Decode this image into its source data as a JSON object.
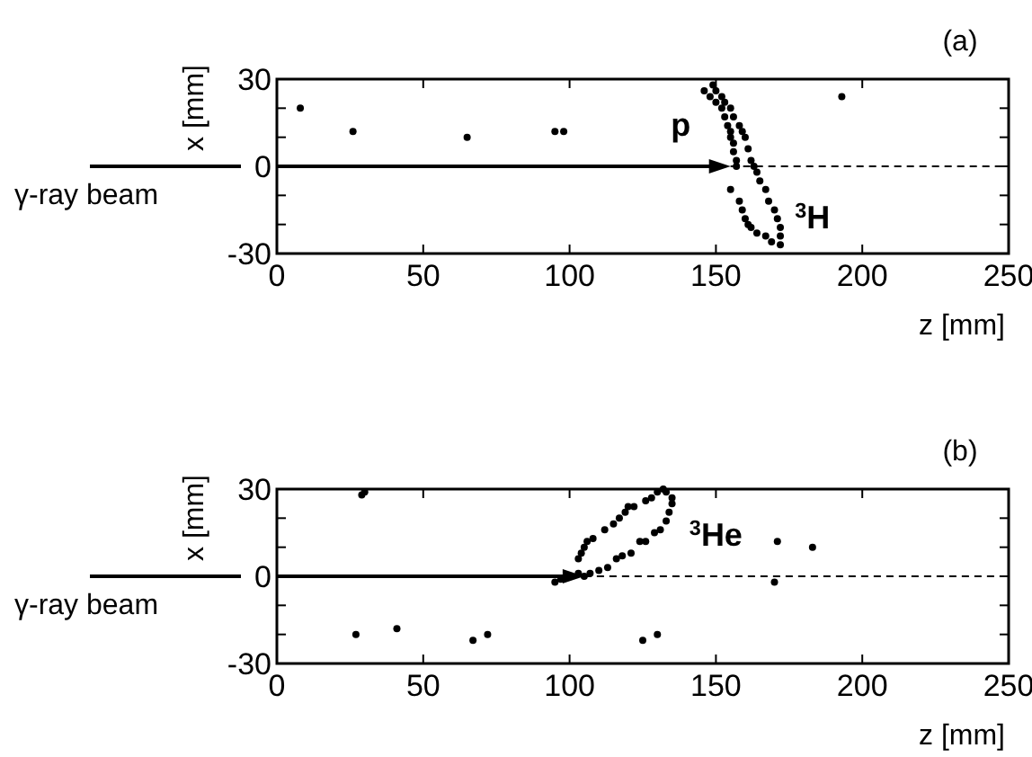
{
  "chart_data": [
    {
      "type": "scatter",
      "title": "(a)",
      "xlabel": "z [mm]",
      "ylabel": "x [mm]",
      "xlim": [
        0,
        250
      ],
      "xticks": [
        0,
        50,
        100,
        150,
        200,
        250
      ],
      "ylim": [
        -30,
        30
      ],
      "yticks": [
        -30,
        {
          "value": -20,
          "label": null
        },
        {
          "value": -10,
          "label": null
        },
        0,
        {
          "value": 10,
          "label": null
        },
        {
          "value": 20,
          "label": null
        },
        30
      ],
      "marker": "circle",
      "ref_lines": [
        {
          "axis": "y",
          "value": 0,
          "line_style": "dashed",
          "color": "#000000"
        }
      ],
      "annotations": [
        "γ-ray beam",
        "p",
        "$^{3}$H"
      ],
      "series": [
        {
          "color": "#000000",
          "x": [
            8,
            26,
            65,
            95,
            98,
            193,
            146,
            148,
            150,
            152,
            153,
            154,
            155,
            155,
            156,
            156,
            157,
            157,
            155,
            158,
            159,
            160,
            161,
            162,
            164,
            167,
            169,
            149,
            150,
            152,
            153,
            155,
            156,
            158,
            159,
            160,
            161,
            162,
            163,
            164,
            165,
            167,
            168,
            170,
            171,
            172,
            172,
            172
          ],
          "values": [
            20,
            12,
            10,
            12,
            12,
            24,
            26,
            24,
            22,
            20,
            17,
            14,
            12,
            10,
            8,
            5,
            2,
            0,
            -8,
            -12,
            -15,
            -18,
            -20,
            -21,
            -23,
            -24,
            -26,
            28,
            26,
            24,
            22,
            20,
            17,
            14,
            12,
            10,
            6,
            2,
            0,
            -2,
            -5,
            -8,
            -12,
            -15,
            -18,
            -21,
            -24,
            -27
          ]
        }
      ]
    },
    {
      "type": "scatter",
      "title": "(b)",
      "xlabel": "z [mm]",
      "ylabel": "x [mm]",
      "xlim": [
        0,
        250
      ],
      "xticks": [
        0,
        50,
        100,
        150,
        200,
        250
      ],
      "ylim": [
        -30,
        30
      ],
      "yticks": [
        -30,
        {
          "value": -20,
          "label": null
        },
        {
          "value": -10,
          "label": null
        },
        0,
        {
          "value": 10,
          "label": null
        },
        {
          "value": 20,
          "label": null
        },
        30
      ],
      "marker": "circle",
      "ref_lines": [
        {
          "axis": "y",
          "value": 0,
          "line_style": "dashed",
          "color": "#000000"
        }
      ],
      "annotations": [
        "γ-ray beam",
        "$^{3}$He"
      ],
      "series": [
        {
          "color": "#000000",
          "x": [
            27,
            41,
            67,
            72,
            125,
            130,
            29,
            30,
            171,
            183,
            170,
            95,
            97,
            103,
            105,
            103,
            104,
            105,
            106,
            108,
            112,
            115,
            117,
            119,
            120,
            122,
            126,
            128,
            130,
            132,
            107,
            110,
            113,
            116,
            118,
            121,
            124,
            126,
            129,
            131,
            133,
            134,
            135,
            135,
            133
          ],
          "values": [
            -20,
            -18,
            -22,
            -20,
            -22,
            -20,
            28,
            29,
            12,
            10,
            -2,
            -2,
            -1,
            1,
            0,
            6,
            8,
            10,
            12,
            13,
            16,
            18,
            20,
            22,
            24,
            24,
            26,
            27,
            29,
            30,
            1,
            2,
            3,
            6,
            7,
            8,
            12,
            12,
            15,
            16,
            19,
            22,
            25,
            27,
            29
          ]
        }
      ]
    }
  ]
}
